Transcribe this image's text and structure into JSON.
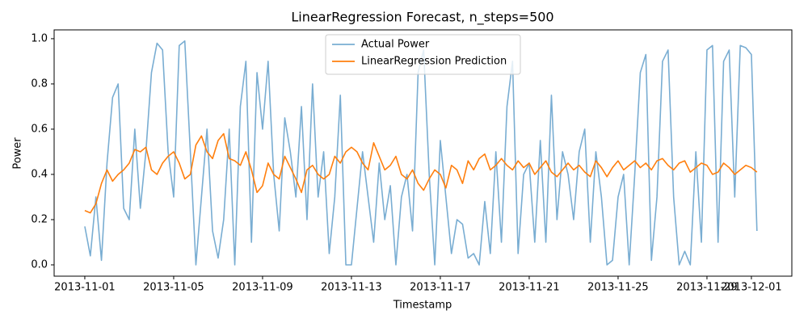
{
  "chart_data": {
    "type": "line",
    "title": "LinearRegression Forecast, n_steps=500",
    "x_label": "Timestamp",
    "y_label": "Power",
    "legend": "upper center",
    "xlim": [
      -1.38,
      31.82
    ],
    "ylim": [
      -0.05,
      1.039
    ],
    "xticks": [
      {
        "value": 0,
        "label": "2013-11-01"
      },
      {
        "value": 4,
        "label": "2013-11-05"
      },
      {
        "value": 8,
        "label": "2013-11-09"
      },
      {
        "value": 12,
        "label": "2013-11-13"
      },
      {
        "value": 16,
        "label": "2013-11-17"
      },
      {
        "value": 20,
        "label": "2013-11-21"
      },
      {
        "value": 24,
        "label": "2013-11-25"
      },
      {
        "value": 28,
        "label": "2013-11-29"
      },
      {
        "value": 30,
        "label": "2013-12-01"
      }
    ],
    "yticks": [
      {
        "value": 0,
        "label": "0.0"
      },
      0.2,
      0.4,
      0.6,
      0.8,
      {
        "value": 1,
        "label": "1.0"
      }
    ],
    "x": [
      0,
      0.25,
      0.5,
      0.75,
      1,
      1.25,
      1.5,
      1.75,
      2,
      2.25,
      2.5,
      2.75,
      3,
      3.25,
      3.5,
      3.75,
      4,
      4.25,
      4.5,
      4.75,
      5,
      5.25,
      5.5,
      5.75,
      6,
      6.25,
      6.5,
      6.75,
      7,
      7.25,
      7.5,
      7.75,
      8,
      8.25,
      8.5,
      8.75,
      9,
      9.25,
      9.5,
      9.75,
      10,
      10.25,
      10.5,
      10.75,
      11,
      11.25,
      11.5,
      11.75,
      12,
      12.25,
      12.5,
      12.75,
      13,
      13.25,
      13.5,
      13.75,
      14,
      14.25,
      14.5,
      14.75,
      15,
      15.25,
      15.5,
      15.75,
      16,
      16.25,
      16.5,
      16.75,
      17,
      17.25,
      17.5,
      17.75,
      18,
      18.25,
      18.5,
      18.75,
      19,
      19.25,
      19.5,
      19.75,
      20,
      20.25,
      20.5,
      20.75,
      21,
      21.25,
      21.5,
      21.75,
      22,
      22.25,
      22.5,
      22.75,
      23,
      23.25,
      23.5,
      23.75,
      24,
      24.25,
      24.5,
      24.75,
      25,
      25.25,
      25.5,
      25.75,
      26,
      26.25,
      26.5,
      26.75,
      27,
      27.25,
      27.5,
      27.75,
      28,
      28.25,
      28.5,
      28.75,
      29,
      29.25,
      29.5,
      29.75,
      30,
      30.25
    ],
    "series": [
      {
        "name": "Actual Power",
        "color": "#1f77b4",
        "opacity": 0.6,
        "values": [
          0.17,
          0.04,
          0.3,
          0.02,
          0.45,
          0.74,
          0.8,
          0.25,
          0.2,
          0.6,
          0.25,
          0.5,
          0.85,
          0.98,
          0.95,
          0.5,
          0.3,
          0.97,
          0.99,
          0.5,
          0.0,
          0.3,
          0.6,
          0.15,
          0.03,
          0.2,
          0.6,
          0.0,
          0.7,
          0.9,
          0.1,
          0.85,
          0.6,
          0.9,
          0.4,
          0.15,
          0.65,
          0.5,
          0.3,
          0.7,
          0.2,
          0.8,
          0.3,
          0.5,
          0.05,
          0.3,
          0.75,
          0.0,
          0.0,
          0.25,
          0.5,
          0.3,
          0.1,
          0.45,
          0.2,
          0.35,
          0.0,
          0.3,
          0.4,
          0.15,
          0.85,
          0.95,
          0.4,
          0.0,
          0.55,
          0.3,
          0.05,
          0.2,
          0.18,
          0.03,
          0.05,
          0.0,
          0.28,
          0.05,
          0.5,
          0.1,
          0.7,
          0.9,
          0.05,
          0.4,
          0.45,
          0.1,
          0.55,
          0.1,
          0.75,
          0.2,
          0.5,
          0.4,
          0.2,
          0.5,
          0.6,
          0.1,
          0.5,
          0.3,
          0.0,
          0.02,
          0.3,
          0.4,
          0.0,
          0.4,
          0.85,
          0.93,
          0.02,
          0.3,
          0.9,
          0.95,
          0.3,
          0.0,
          0.06,
          0.0,
          0.5,
          0.1,
          0.95,
          0.97,
          0.1,
          0.9,
          0.95,
          0.3,
          0.97,
          0.96,
          0.93,
          0.15
        ]
      },
      {
        "name": "LinearRegression Prediction",
        "color": "#ff7f0e",
        "opacity": 1,
        "values": [
          0.24,
          0.23,
          0.27,
          0.36,
          0.42,
          0.37,
          0.4,
          0.42,
          0.45,
          0.51,
          0.5,
          0.52,
          0.42,
          0.4,
          0.45,
          0.48,
          0.5,
          0.45,
          0.38,
          0.4,
          0.53,
          0.57,
          0.5,
          0.47,
          0.55,
          0.58,
          0.47,
          0.46,
          0.44,
          0.5,
          0.42,
          0.32,
          0.35,
          0.45,
          0.4,
          0.38,
          0.48,
          0.43,
          0.38,
          0.32,
          0.42,
          0.44,
          0.4,
          0.38,
          0.4,
          0.48,
          0.45,
          0.5,
          0.52,
          0.5,
          0.45,
          0.42,
          0.54,
          0.48,
          0.42,
          0.44,
          0.48,
          0.4,
          0.38,
          0.42,
          0.36,
          0.33,
          0.38,
          0.42,
          0.4,
          0.34,
          0.44,
          0.42,
          0.36,
          0.46,
          0.42,
          0.47,
          0.49,
          0.42,
          0.44,
          0.47,
          0.44,
          0.42,
          0.46,
          0.43,
          0.45,
          0.4,
          0.43,
          0.46,
          0.41,
          0.39,
          0.42,
          0.45,
          0.42,
          0.44,
          0.41,
          0.39,
          0.46,
          0.43,
          0.39,
          0.43,
          0.46,
          0.42,
          0.44,
          0.46,
          0.43,
          0.45,
          0.42,
          0.46,
          0.47,
          0.44,
          0.42,
          0.45,
          0.46,
          0.41,
          0.43,
          0.45,
          0.44,
          0.4,
          0.41,
          0.45,
          0.43,
          0.4,
          0.42,
          0.44,
          0.43,
          0.41
        ]
      }
    ]
  }
}
